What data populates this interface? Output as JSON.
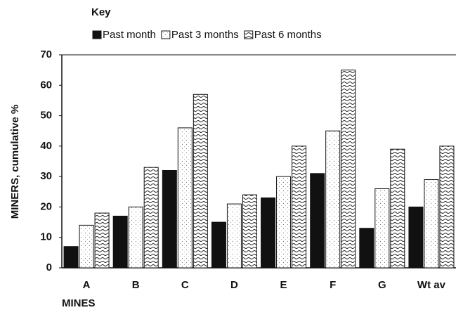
{
  "chart_data": {
    "type": "bar",
    "key_title": "Key",
    "y_label": "MINERS, cumulative %",
    "x_label": "MINES",
    "categories": [
      "A",
      "B",
      "C",
      "D",
      "E",
      "F",
      "G",
      "Wt av"
    ],
    "series": [
      {
        "name": "Past month",
        "color": "#111111",
        "values": [
          7,
          17,
          32,
          15,
          23,
          31,
          13,
          20
        ]
      },
      {
        "name": "Past 3 months",
        "color": "#ffffff",
        "values": [
          14,
          20,
          46,
          21,
          30,
          45,
          26,
          29
        ]
      },
      {
        "name": "Past 6 months",
        "color": "#e0e0e0",
        "values": [
          18,
          33,
          57,
          24,
          40,
          65,
          39,
          40
        ]
      }
    ],
    "ylim": [
      0,
      70
    ],
    "yticks": [
      0,
      10,
      20,
      30,
      40,
      50,
      60,
      70
    ],
    "grid": false
  }
}
